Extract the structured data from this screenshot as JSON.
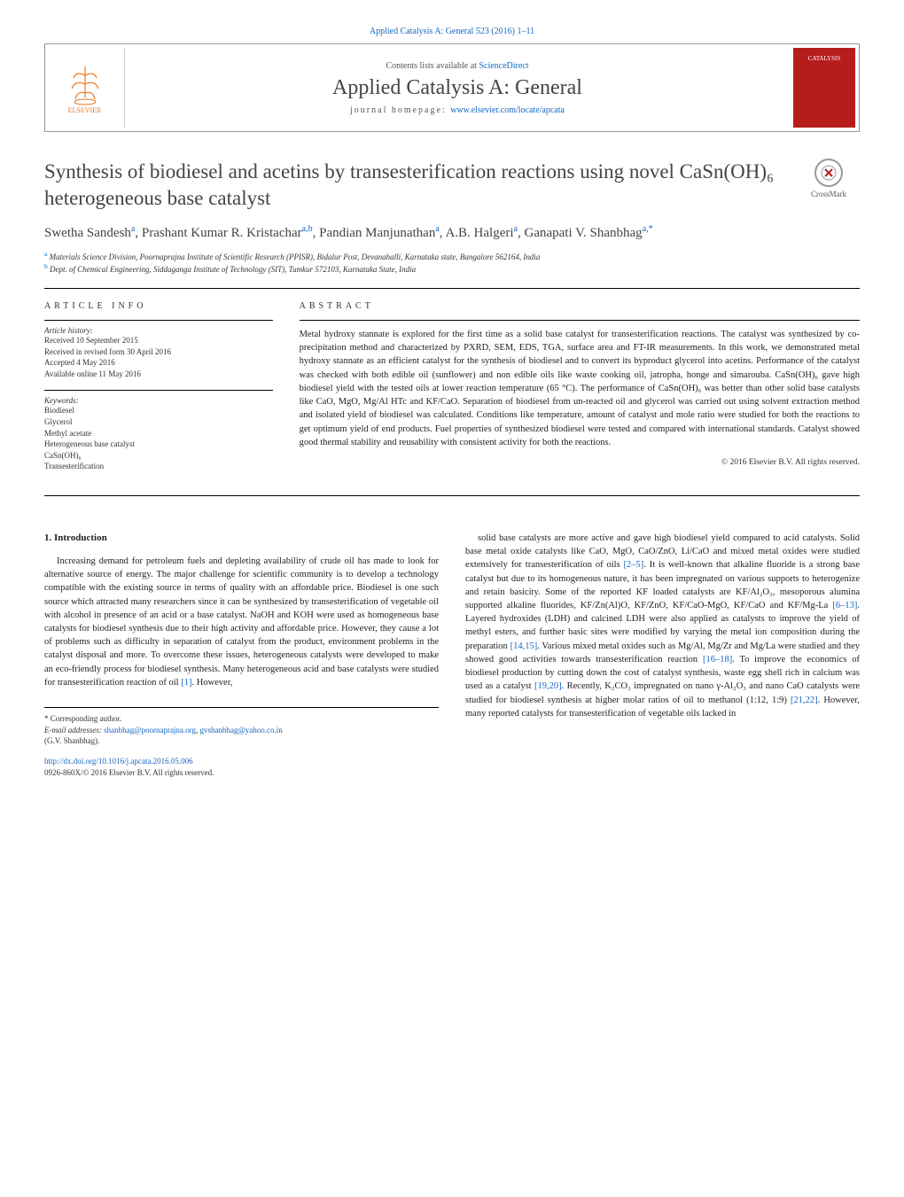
{
  "header": {
    "top_citation": "Applied Catalysis A: General 523 (2016) 1–11",
    "contents_prefix": "Contents lists available at ",
    "contents_link": "ScienceDirect",
    "journal_name": "Applied Catalysis A: General",
    "homepage_label": "journal homepage: ",
    "homepage_url": "www.elsevier.com/locate/apcata",
    "publisher_logo_text": "ELSEVIER",
    "cover_text": "CATALYSIS"
  },
  "crossmark": {
    "label": "CrossMark"
  },
  "title": "Synthesis of biodiesel and acetins by transesterification reactions using novel CaSn(OH)₆ heterogeneous base catalyst",
  "authors_html": "Swetha Sandesh<sup>a</sup>, Prashant Kumar R. Kristachar<sup>a,b</sup>, Pandian Manjunathan<sup>a</sup>, A.B. Halgeri<sup>a</sup>, Ganapati V. Shanbhag<sup>a,*</sup>",
  "affiliations": [
    {
      "sup": "a",
      "text": " Materials Science Division, Poornaprajna Institute of Scientific Research (PPISR), Bidalur Post, Devanahalli, Karnataka state, Bangalore 562164, India"
    },
    {
      "sup": "b",
      "text": " Dept. of Chemical Engineering, Siddaganga Institute of Technology (SIT), Tumkur 572103, Karnataka State, India"
    }
  ],
  "article_info": {
    "heading": "article info",
    "history_label": "Article history:",
    "history": [
      "Received 10 September 2015",
      "Received in revised form 30 April 2016",
      "Accepted 4 May 2016",
      "Available online 11 May 2016"
    ],
    "keywords_label": "Keywords:",
    "keywords": [
      "Biodiesel",
      "Glycerol",
      "Methyl acetate",
      "Heterogeneous base catalyst",
      "CaSn(OH)₆",
      "Transesterification"
    ]
  },
  "abstract": {
    "heading": "abstract",
    "text": "Metal hydroxy stannate is explored for the first time as a solid base catalyst for transesterification reactions. The catalyst was synthesized by co-precipitation method and characterized by PXRD, SEM, EDS, TGA, surface area and FT-IR measurements. In this work, we demonstrated metal hydroxy stannate as an efficient catalyst for the synthesis of biodiesel and to convert its byproduct glycerol into acetins. Performance of the catalyst was checked with both edible oil (sunflower) and non edible oils like waste cooking oil, jatropha, honge and simarouba. CaSn(OH)₆ gave high biodiesel yield with the tested oils at lower reaction temperature (65 °C). The performance of CaSn(OH)₆ was better than other solid base catalysts like CaO, MgO, Mg/Al HTc and KF/CaO. Separation of biodiesel from un-reacted oil and glycerol was carried out using solvent extraction method and isolated yield of biodiesel was calculated. Conditions like temperature, amount of catalyst and mole ratio were studied for both the reactions to get optimum yield of end products. Fuel properties of synthesized biodiesel were tested and compared with international standards. Catalyst showed good thermal stability and reusability with consistent activity for both the reactions.",
    "copyright": "© 2016 Elsevier B.V. All rights reserved."
  },
  "body": {
    "section_heading": "1.  Introduction",
    "col1": "Increasing demand for petroleum fuels and depleting availability of crude oil has made to look for alternative source of energy. The major challenge for scientific community is to develop a technology compatible with the existing source in terms of quality with an affordable price. Biodiesel is one such source which attracted many researchers since it can be synthesized by transesterification of vegetable oil with alcohol in presence of an acid or a base catalyst. NaOH and KOH were used as homogeneous base catalysts for biodiesel synthesis due to their high activity and affordable price. However, they cause a lot of problems such as difficulty in separation of catalyst from the product, environment problems in the catalyst disposal and more. To overcome these issues, heterogeneous catalysts were developed to make an eco-friendly process for biodiesel synthesis. Many heterogeneous acid and base catalysts were studied for transesterification reaction of oil ",
    "col1_ref1": "[1]",
    "col1_tail": ". However,",
    "col2_p1": "solid base catalysts are more active and gave high biodiesel yield compared to acid catalysts. Solid base metal oxide catalysts like CaO, MgO, CaO/ZnO, Li/CaO and mixed metal oxides were studied extensively for transesterification of oils ",
    "col2_ref1": "[2–5]",
    "col2_p2": ". It is well-known that alkaline fluoride is a strong base catalyst but due to its homogeneous nature, it has been impregnated on various supports to heterogenize and retain basicity. Some of the reported KF loaded catalysts are KF/Al₂O₃, mesoporous alumina supported alkaline fluorides, KF/Zn(Al)O, KF/ZnO, KF/CaO-MgO, KF/CaO and KF/Mg-La ",
    "col2_ref2": "[6–13]",
    "col2_p3": ". Layered hydroxides (LDH) and calcined LDH were also applied as catalysts to improve the yield of methyl esters, and further basic sites were modified by varying the metal ion composition during the preparation ",
    "col2_ref3": "[14,15]",
    "col2_p4": ". Various mixed metal oxides such as Mg/Al, Mg/Zr and Mg/La were studied and they showed good activities towards transesterification reaction ",
    "col2_ref4": "[16–18]",
    "col2_p5": ". To improve the economics of biodiesel production by cutting down the cost of catalyst synthesis, waste egg shell rich in calcium was used as a catalyst ",
    "col2_ref5": "[19,20]",
    "col2_p6": ". Recently, K₂CO₃ impregnated on nano γ-Al₂O₃ and nano CaO catalysts were studied for biodiesel synthesis at higher molar ratios of oil to methanol (1:12, 1:9) ",
    "col2_ref6": "[21,22]",
    "col2_p7": ". However, many reported catalysts for transesterification of vegetable oils lacked in"
  },
  "footer": {
    "corr_label": "* Corresponding author.",
    "email_label": "E-mail addresses: ",
    "email1": "shanbhag@poornaprajna.org",
    "email_sep": ", ",
    "email2": "gvshanbhag@yahoo.co.in",
    "corr_name": "(G.V. Shanbhag).",
    "doi_url": "http://dx.doi.org/10.1016/j.apcata.2016.05.006",
    "issn_line": "0926-860X/© 2016 Elsevier B.V. All rights reserved."
  },
  "colors": {
    "link": "#1565c0",
    "publisher_orange": "#e87722",
    "cover_red": "#b71c1c",
    "text_gray": "#444444",
    "body_text": "#222222"
  }
}
